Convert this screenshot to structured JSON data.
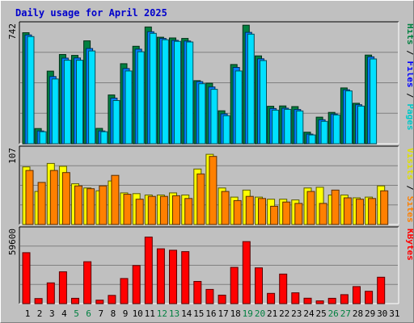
{
  "chart_data": {
    "type": "bar",
    "title": "Daily usage for April 2025",
    "categories": [
      "1",
      "2",
      "3",
      "4",
      "5",
      "6",
      "7",
      "8",
      "9",
      "10",
      "11",
      "12",
      "13",
      "14",
      "15",
      "16",
      "17",
      "18",
      "19",
      "20",
      "21",
      "22",
      "23",
      "24",
      "25",
      "26",
      "27",
      "28",
      "29",
      "30",
      "31"
    ],
    "weekend_days": [
      "5",
      "6",
      "12",
      "13",
      "19",
      "20",
      "26",
      "27"
    ],
    "panels": [
      {
        "id": "hits-files-pages",
        "ymax_label": "742",
        "ylim": [
          0,
          742
        ],
        "series": [
          {
            "name": "Hits",
            "color": "#008040",
            "values": [
              694,
              95,
              454,
              558,
              552,
              643,
              96,
              305,
              500,
              609,
              730,
              666,
              661,
              658,
              394,
              378,
              206,
              495,
              741,
              549,
              234,
              236,
              232,
              72,
              166,
              196,
              349,
              253,
              554,
              null,
              null
            ]
          },
          {
            "name": "Files",
            "color": "#0080ff",
            "values": [
              680,
              80,
              420,
              535,
              536,
              595,
              80,
              285,
              470,
              591,
              700,
              658,
              646,
              642,
              388,
              355,
              187,
              477,
              696,
              531,
              220,
              222,
              214,
              60,
              150,
              186,
              337,
              244,
              543,
              null,
              null
            ]
          },
          {
            "name": "Pages",
            "color": "#00e0ff",
            "values": [
              670,
              75,
              405,
              522,
              522,
              580,
              75,
              270,
              455,
              575,
              690,
              650,
              640,
              636,
              375,
              340,
              175,
              455,
              685,
              520,
              210,
              215,
              205,
              55,
              140,
              180,
              330,
              235,
              530,
              null,
              null
            ]
          }
        ],
        "axis_labels": [
          {
            "text": "Pages",
            "color": "#00c8c8"
          },
          {
            "text": "Files",
            "color": "#0000ff"
          },
          {
            "text": "Hits",
            "color": "#008040"
          }
        ]
      },
      {
        "id": "visits-sites",
        "ymax_label": "107",
        "ylim": [
          0,
          107
        ],
        "series": [
          {
            "name": "Visits",
            "color": "#ffff00",
            "values": [
              82,
              47,
              87,
              83,
              58,
              52,
              48,
              62,
              45,
              44,
              42,
              42,
              45,
              42,
              79,
              100,
              52,
              39,
              49,
              39,
              36,
              36,
              35,
              52,
              53,
              42,
              42,
              38,
              39,
              55,
              null
            ]
          },
          {
            "name": "Sites",
            "color": "#ff8000",
            "values": [
              77,
              60,
              77,
              74,
              55,
              51,
              55,
              70,
              43,
              36,
              40,
              40,
              41,
              37,
              72,
              97,
              47,
              34,
              40,
              37,
              26,
              32,
              30,
              47,
              30,
              49,
              38,
              36,
              37,
              48,
              null
            ]
          }
        ],
        "axis_labels": [
          {
            "text": "Sites",
            "color": "#ff8000"
          },
          {
            "text": "Visits",
            "color": "#e0e000"
          }
        ]
      },
      {
        "id": "kbytes",
        "ymax_label": "59600",
        "ylim": [
          0,
          59600
        ],
        "series": [
          {
            "name": "KBytes",
            "color": "#ff0000",
            "values": [
              41300,
              4100,
              16800,
              25800,
              4300,
              34000,
              2800,
              6700,
              20400,
              30900,
              54000,
              44500,
              43300,
              42200,
              18000,
              11500,
              6900,
              29400,
              50300,
              29000,
              8300,
              24000,
              8800,
              4400,
              2200,
              4300,
              7300,
              13800,
              10000,
              21400,
              null
            ]
          }
        ],
        "axis_labels": [
          {
            "text": "KBytes",
            "color": "#ff0000"
          }
        ]
      }
    ]
  }
}
